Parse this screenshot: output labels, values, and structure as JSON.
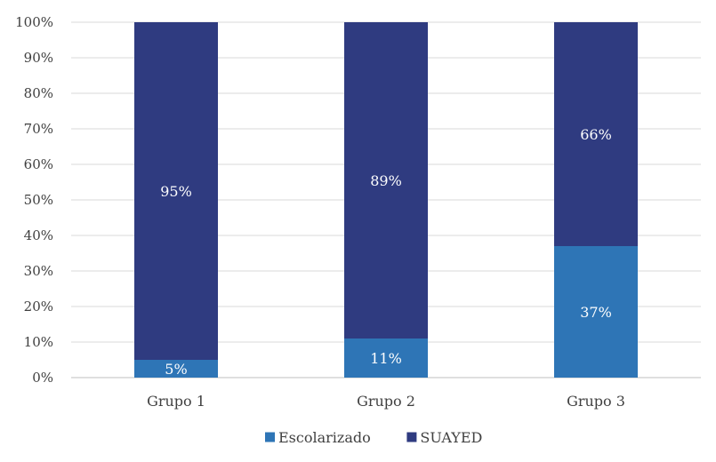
{
  "chart_data": {
    "type": "bar",
    "stacked": true,
    "categories": [
      "Grupo 1",
      "Grupo 2",
      "Grupo 3"
    ],
    "series": [
      {
        "name": "Escolarizado",
        "color": "#2E75B6",
        "values": [
          5,
          11,
          37
        ],
        "labels": [
          "5%",
          "11%",
          "37%"
        ]
      },
      {
        "name": "SUAYED",
        "color": "#2F3B80",
        "values": [
          95,
          89,
          66
        ],
        "labels": [
          "95%",
          "89%",
          "66%"
        ]
      }
    ],
    "ylim": [
      0,
      100
    ],
    "yticks": [
      0,
      10,
      20,
      30,
      40,
      50,
      60,
      70,
      80,
      90,
      100
    ],
    "ytick_labels": [
      "0%",
      "10%",
      "20%",
      "30%",
      "40%",
      "50%",
      "60%",
      "70%",
      "80%",
      "90%",
      "100%"
    ],
    "grid": true,
    "gridline_color": "#D9D9D9",
    "legend": "bottom"
  }
}
